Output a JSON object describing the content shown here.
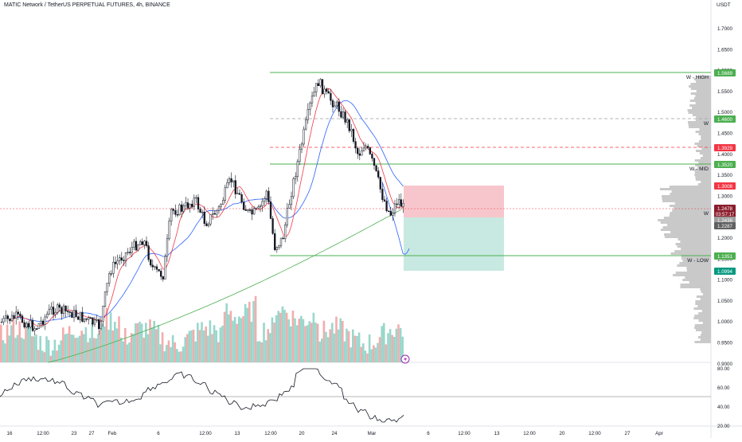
{
  "header": {
    "symbol_title": "MATIC Network / TetherUS PERPETUAL FUTURES, 4h, BINANCE"
  },
  "price_axis": {
    "currency": "USDT",
    "ticks": [
      "1.7000",
      "1.6500",
      "1.6000",
      "1.5500",
      "1.5000",
      "1.4500",
      "1.4000",
      "1.3500",
      "1.3000",
      "1.2500",
      "1.2000",
      "1.1500",
      "1.1000",
      "1.0500",
      "1.0000",
      "0.9500",
      "0.9000"
    ]
  },
  "rsi_axis": {
    "ticks": [
      "80.00",
      "60.00",
      "40.00",
      "20.00"
    ]
  },
  "time_axis": {
    "ticks": [
      "16",
      "12:00",
      "23",
      "27",
      "Feb",
      "6",
      "12:00",
      "13",
      "12:00",
      "20",
      "24",
      "Mar",
      "6",
      "12:00",
      "13",
      "12:00",
      "20",
      "12:00",
      "27",
      "Apr"
    ]
  },
  "levels": {
    "w_high": {
      "label": "W - HIGH",
      "price": "1.5689",
      "color": "#4caf50"
    },
    "w_upper": {
      "label": "W",
      "price": "1.4600",
      "color": "#4caf50"
    },
    "red_dashed": {
      "price": "1.3929",
      "color": "#f23645"
    },
    "w_mid": {
      "label": "W - MID",
      "price": "1.3520",
      "color": "#4caf50"
    },
    "stop": {
      "price": "1.3008",
      "color": "#f23645"
    },
    "current_label": "W",
    "current_price": "1.2478",
    "countdown": "03:57:17",
    "entry": {
      "price": "1.2436",
      "color": "#9e9e9e"
    },
    "sma_value": {
      "price": "1.2287",
      "color": "#616161"
    },
    "w_low": {
      "label": "W - LOW",
      "price": "1.1351",
      "color": "#4caf50"
    },
    "target": {
      "price": "1.0994",
      "color": "#089981"
    }
  },
  "colors": {
    "bull_volume": "#8fd3c7",
    "bear_volume": "#f3a3a3",
    "candle": "#131722",
    "ema_red": "#f23645",
    "ema_blue": "#2962ff",
    "sma_green": "#4caf50",
    "risk_zone": "#f7c6cc",
    "reward_zone": "#c8e9e1",
    "volume_profile": "#c9c9c9"
  },
  "icons": {
    "flash": "lightning-icon"
  }
}
